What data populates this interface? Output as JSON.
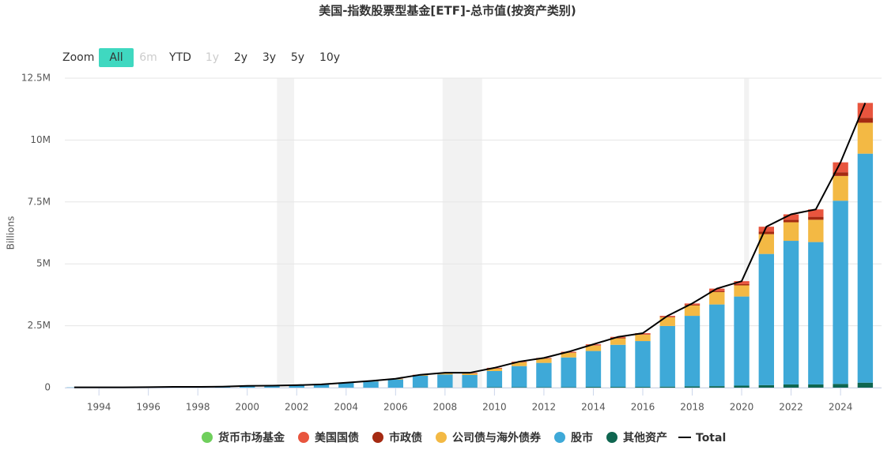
{
  "chart_data": {
    "type": "stacked-bar",
    "title": "美国-指数股票型基金[ETF]-总市值(按资产类别)",
    "y_label": "Billions",
    "range_selector": {
      "label": "Zoom",
      "buttons": [
        "All",
        "6m",
        "YTD",
        "1y",
        "2y",
        "3y",
        "5y",
        "10y"
      ]
    },
    "x": [
      1993,
      1994,
      1995,
      1996,
      1997,
      1998,
      1999,
      2000,
      2001,
      2002,
      2003,
      2004,
      2005,
      2006,
      2007,
      2008,
      2009,
      2010,
      2011,
      2012,
      2013,
      2014,
      2015,
      2016,
      2017,
      2018,
      2019,
      2020,
      2021,
      2022,
      2023,
      2024,
      2025
    ],
    "xlim": [
      1992.62,
      2025.66
    ],
    "xticks": [
      1994,
      1996,
      1998,
      2000,
      2002,
      2004,
      2006,
      2008,
      2010,
      2012,
      2014,
      2016,
      2018,
      2020,
      2022,
      2024
    ],
    "ylim": [
      0,
      12500000
    ],
    "yticks": [
      0,
      {
        "value": 2500000,
        "label": "2.5M"
      },
      {
        "value": 5000000,
        "label": "5M"
      },
      {
        "value": 7500000,
        "label": "7.5M"
      },
      {
        "value": 10000000,
        "label": "10M"
      },
      {
        "value": 12500000,
        "label": "12.5M"
      }
    ],
    "plot_bands": [
      [
        2001.2,
        2001.9
      ],
      [
        2007.9,
        2009.5
      ],
      [
        2020.1,
        2020.3
      ]
    ],
    "grid": true,
    "series": [
      {
        "name": "其他资产",
        "color": "#0f6650",
        "values": [
          0,
          0,
          0,
          0,
          0,
          0,
          0,
          0,
          0,
          0,
          0,
          0,
          0,
          0,
          10000,
          10000,
          10000,
          20000,
          20000,
          20000,
          20000,
          30000,
          30000,
          30000,
          40000,
          50000,
          60000,
          80000,
          100000,
          130000,
          130000,
          150000,
          200000
        ]
      },
      {
        "name": "股市",
        "color": "#3ea9d8",
        "values": [
          10000,
          10000,
          10000,
          20000,
          30000,
          30000,
          40000,
          70000,
          80000,
          100000,
          130000,
          190000,
          250000,
          330000,
          470000,
          520000,
          500000,
          650000,
          850000,
          980000,
          1200000,
          1450000,
          1700000,
          1850000,
          2450000,
          2850000,
          3300000,
          3600000,
          5300000,
          5800000,
          5750000,
          7400000,
          9250000
        ]
      },
      {
        "name": "公司债与海外债券",
        "color": "#f3b944",
        "values": [
          0,
          0,
          0,
          0,
          0,
          0,
          0,
          0,
          0,
          0,
          0,
          10000,
          10000,
          20000,
          30000,
          50000,
          60000,
          100000,
          150000,
          170000,
          190000,
          220000,
          260000,
          260000,
          350000,
          420000,
          500000,
          450000,
          800000,
          750000,
          900000,
          1000000,
          1250000
        ]
      },
      {
        "name": "市政债",
        "color": "#a52a12",
        "values": [
          0,
          0,
          0,
          0,
          0,
          0,
          0,
          0,
          0,
          0,
          0,
          0,
          0,
          0,
          0,
          0,
          10000,
          10000,
          10000,
          10000,
          10000,
          10000,
          20000,
          20000,
          20000,
          30000,
          40000,
          50000,
          100000,
          100000,
          120000,
          150000,
          200000
        ]
      },
      {
        "name": "美国国债",
        "color": "#e8553e",
        "values": [
          0,
          0,
          0,
          0,
          0,
          0,
          0,
          0,
          0,
          0,
          0,
          0,
          10000,
          10000,
          10000,
          20000,
          20000,
          20000,
          20000,
          20000,
          30000,
          40000,
          40000,
          40000,
          40000,
          50000,
          100000,
          120000,
          200000,
          220000,
          300000,
          400000,
          600000
        ]
      },
      {
        "name": "货币市场基金",
        "color": "#6fcf5c",
        "values": [
          0,
          0,
          0,
          0,
          0,
          0,
          0,
          0,
          0,
          0,
          0,
          0,
          0,
          0,
          0,
          0,
          0,
          0,
          0,
          0,
          0,
          0,
          0,
          0,
          0,
          0,
          0,
          0,
          0,
          0,
          0,
          0,
          0
        ]
      }
    ],
    "total": {
      "name": "Total",
      "color": "#000000",
      "values": [
        10000,
        10000,
        10000,
        20000,
        30000,
        30000,
        40000,
        70000,
        80000,
        100000,
        130000,
        200000,
        270000,
        360000,
        520000,
        600000,
        600000,
        800000,
        1050000,
        1200000,
        1450000,
        1750000,
        2050000,
        2200000,
        2900000,
        3400000,
        4000000,
        4300000,
        6500000,
        7000000,
        7200000,
        9100000,
        11500000
      ]
    },
    "legend_order": [
      5,
      4,
      3,
      2,
      1,
      0
    ]
  }
}
